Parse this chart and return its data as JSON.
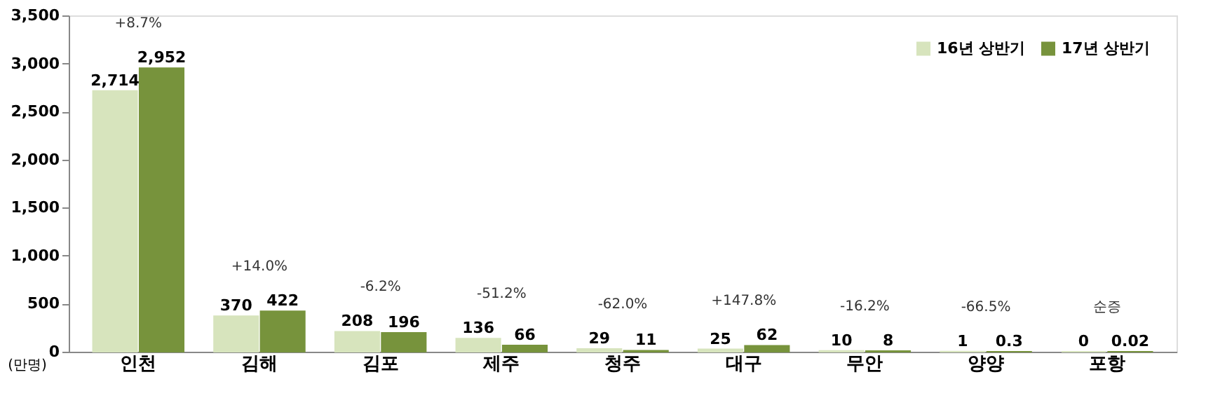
{
  "chart_data": {
    "type": "bar",
    "ylabel": "(만명)",
    "categories": [
      "인천",
      "김해",
      "김포",
      "제주",
      "청주",
      "대구",
      "무안",
      "양양",
      "포항"
    ],
    "series": [
      {
        "name": "16년 상반기",
        "color": "#d7e4bd",
        "values": [
          2714,
          370,
          208,
          136,
          29,
          25,
          10,
          1,
          0
        ],
        "value_labels": [
          "2,714",
          "370",
          "208",
          "136",
          "29",
          "25",
          "10",
          "1",
          "0"
        ]
      },
      {
        "name": "17년 상반기",
        "color": "#77933c",
        "values": [
          2952,
          422,
          196,
          66,
          11,
          62,
          8,
          0.3,
          0.02
        ],
        "value_labels": [
          "2,952",
          "422",
          "196",
          "66",
          "11",
          "62",
          "8",
          "0.3",
          "0.02"
        ]
      }
    ],
    "ylim": [
      0,
      3500
    ],
    "yticks": [
      {
        "value": 0,
        "label": "0"
      },
      {
        "value": 500,
        "label": "500"
      },
      {
        "value": 1000,
        "label": "1,000"
      },
      {
        "value": 1500,
        "label": "1,500"
      },
      {
        "value": 2000,
        "label": "2,000"
      },
      {
        "value": 2500,
        "label": "2,500"
      },
      {
        "value": 3000,
        "label": "3,000"
      },
      {
        "value": 3500,
        "label": "3,500"
      }
    ],
    "grid": false,
    "legend": "top right",
    "annotations": [
      "+8.7%",
      "+14.0%",
      "-6.2%",
      "-51.2%",
      "-62.0%",
      "+147.8%",
      "-16.2%",
      "-66.5%",
      "순증"
    ]
  }
}
